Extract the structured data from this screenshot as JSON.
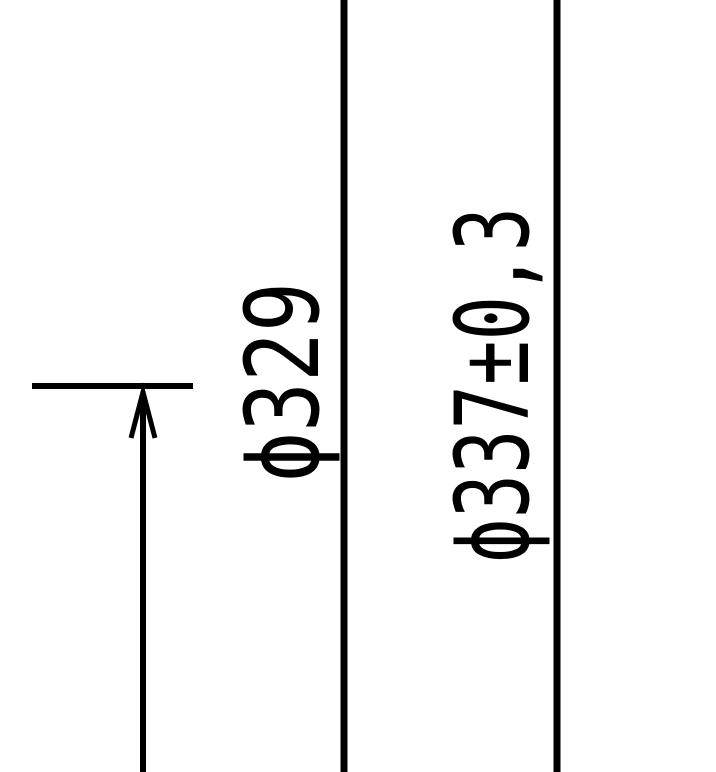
{
  "drawing": {
    "dimension_1": {
      "symbol": "ϕ",
      "value": "329"
    },
    "dimension_2": {
      "symbol": "ϕ",
      "value": "337±0,3"
    },
    "colors": {
      "line": "#000000",
      "background": "#ffffff"
    }
  }
}
